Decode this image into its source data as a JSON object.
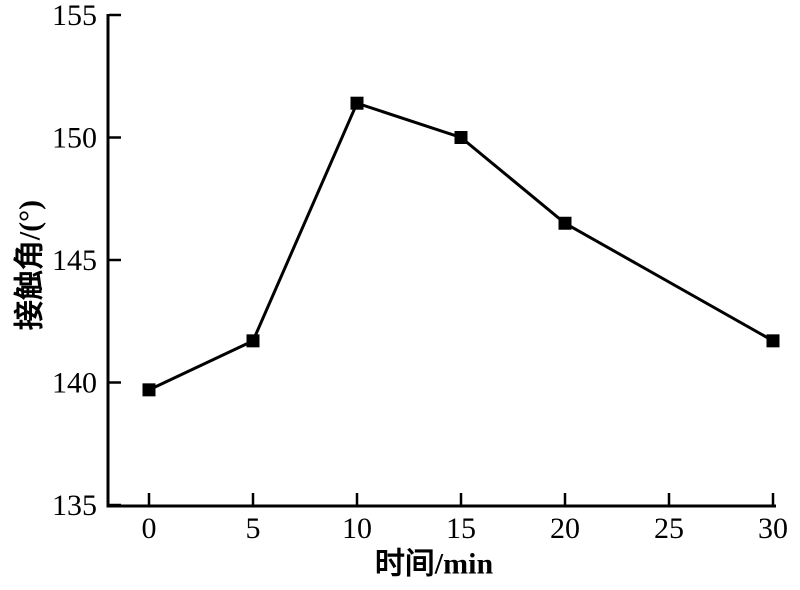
{
  "chart_data": {
    "type": "line",
    "title": "",
    "xlabel": "时间/min",
    "ylabel": "接触角/(°)",
    "x_ticks": [
      0,
      5,
      10,
      15,
      20,
      25,
      30
    ],
    "y_ticks": [
      135,
      140,
      145,
      150,
      155
    ],
    "xlim": [
      -2,
      30.15
    ],
    "ylim": [
      135,
      155
    ],
    "grid": false,
    "legend_position": "none",
    "series": [
      {
        "name": "contact-angle-vs-time",
        "marker": "square",
        "marker_size": 13,
        "line_width": 3,
        "color": "#000000",
        "x": [
          0,
          5,
          10,
          15,
          20,
          30
        ],
        "y": [
          139.7,
          141.7,
          151.4,
          150.0,
          146.5,
          141.7
        ]
      }
    ]
  },
  "colors": {
    "background": "#ffffff",
    "axis": "#000000",
    "text": "#000000"
  }
}
